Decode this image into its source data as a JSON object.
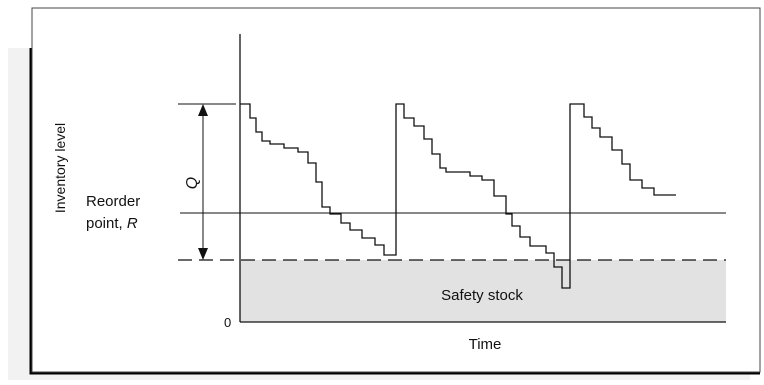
{
  "labels": {
    "y_axis": "Inventory level",
    "x_axis": "Time",
    "quantity": "Q",
    "reorder_line1": "Reorder",
    "reorder_line2_text": "point, ",
    "reorder_line2_var": "R",
    "safety_stock": "Safety stock",
    "zero": "0"
  },
  "colors": {
    "safety_fill": "#e2e2e2",
    "line": "#111111",
    "shadow": "#000000"
  }
}
